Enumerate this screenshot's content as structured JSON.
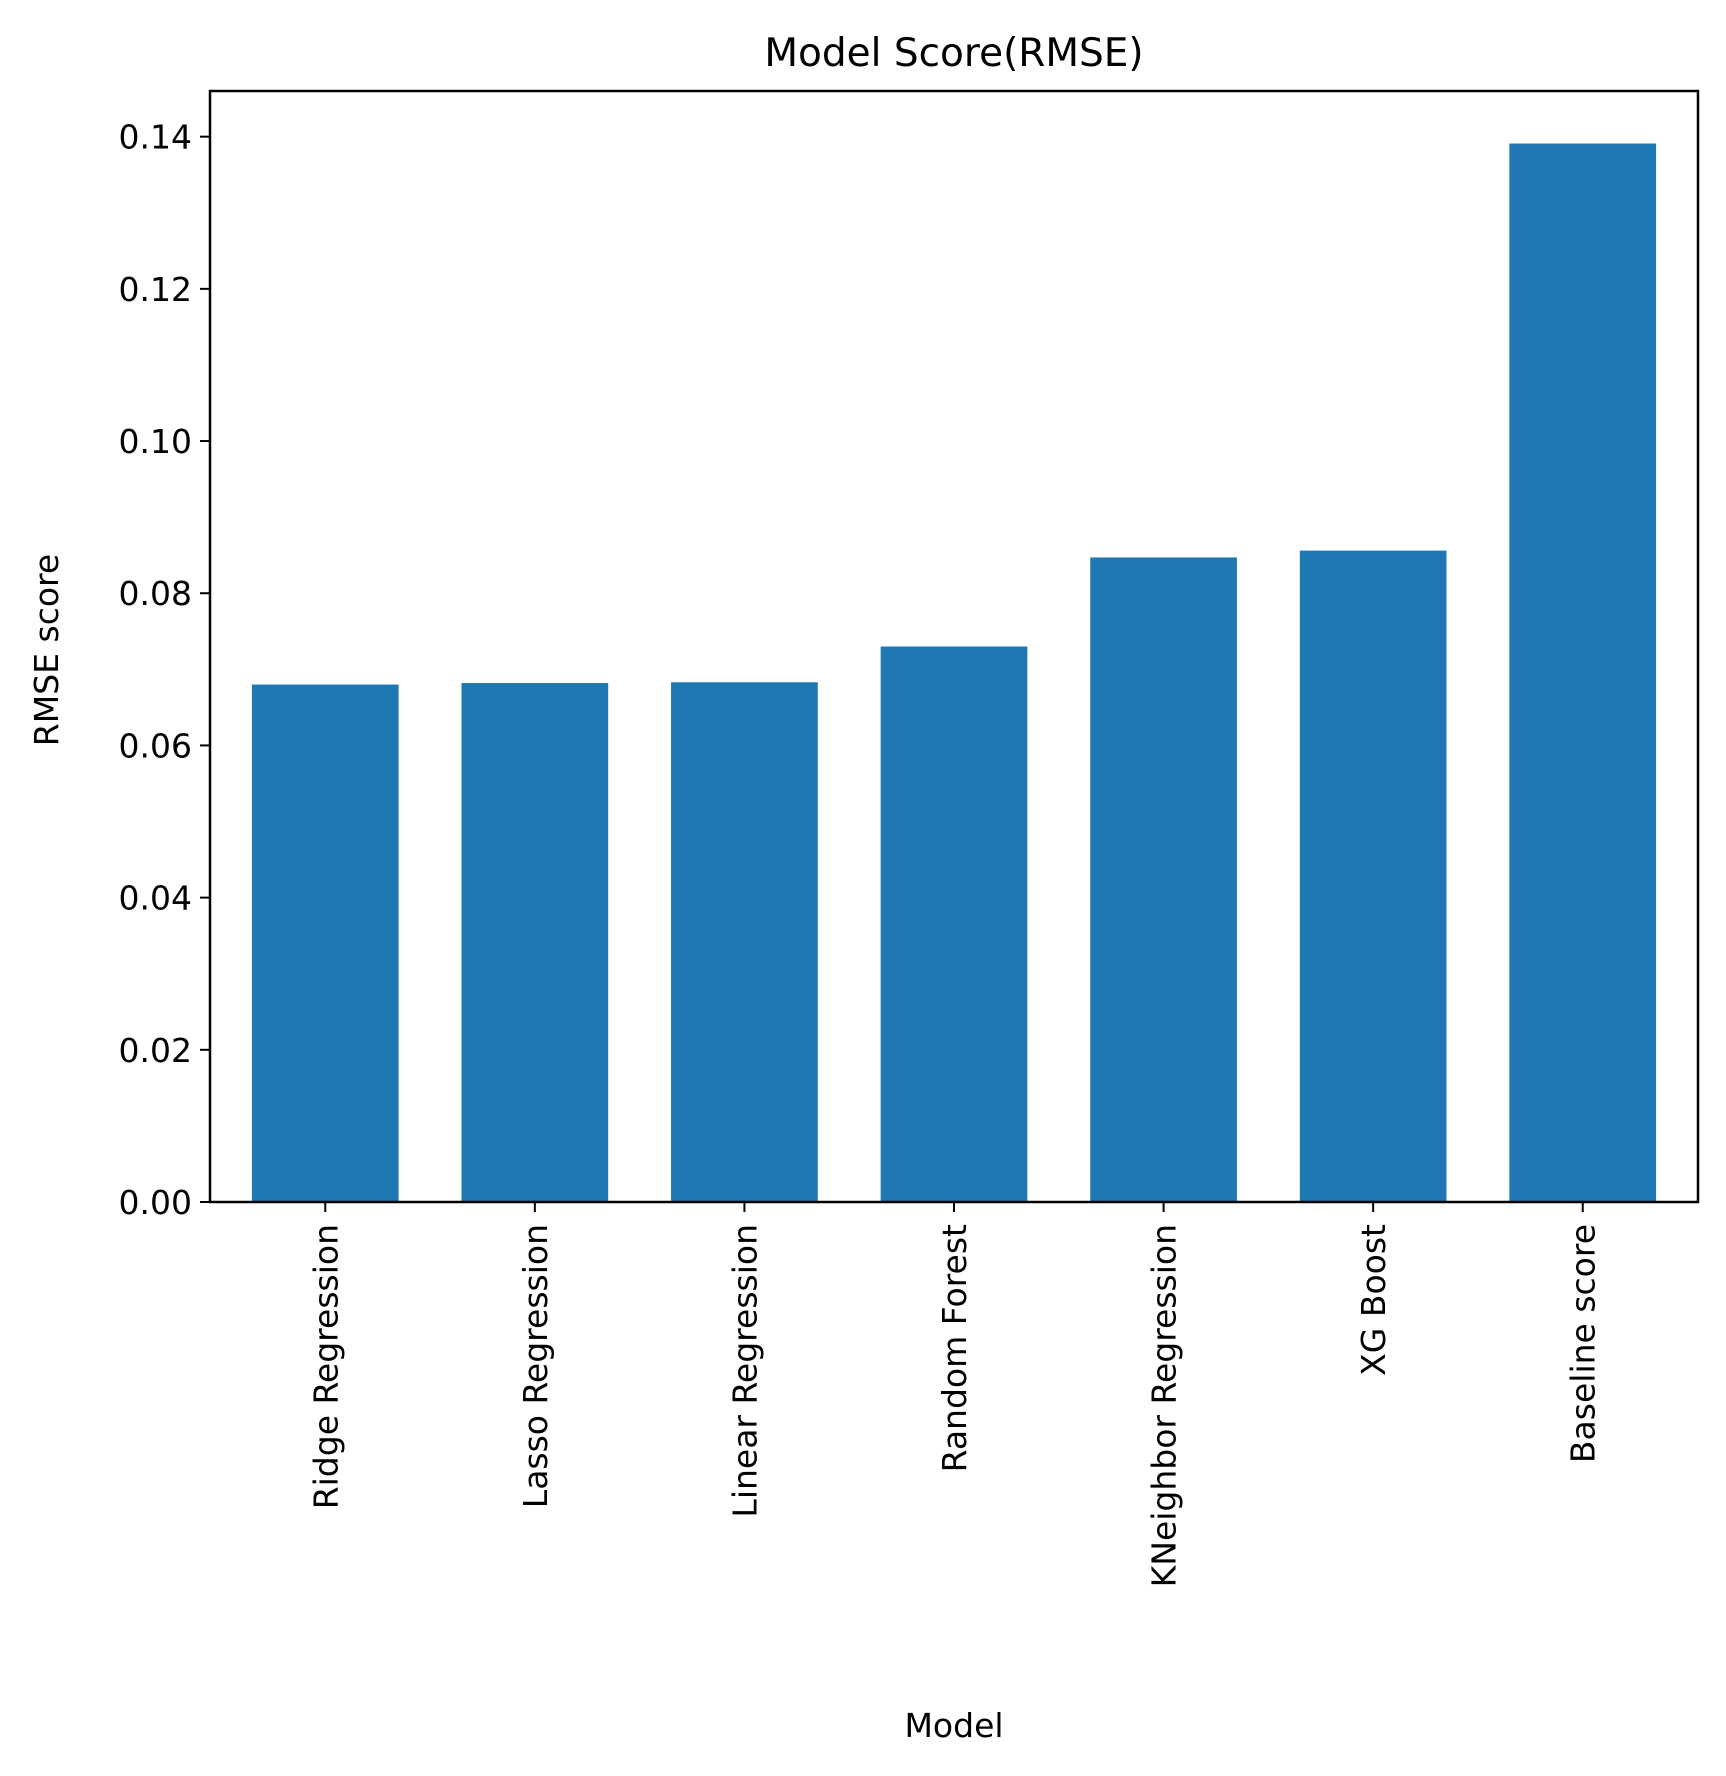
{
  "chart_data": {
    "type": "bar",
    "title": "Model Score(RMSE)",
    "xlabel": "Model",
    "ylabel": "RMSE score",
    "categories": [
      "Ridge Regression",
      "Lasso Regression",
      "Linear Regression",
      "Random Forest",
      "KNeighbor Regression",
      "XG Boost",
      "Baseline score"
    ],
    "values": [
      0.068,
      0.0682,
      0.0683,
      0.073,
      0.0847,
      0.0856,
      0.1391
    ],
    "ylim": [
      0,
      0.146
    ],
    "yticks": [
      0.0,
      0.02,
      0.04,
      0.06,
      0.08,
      0.1,
      0.12,
      0.14
    ],
    "ytick_labels": [
      "0.00",
      "0.02",
      "0.04",
      "0.06",
      "0.08",
      "0.10",
      "0.12",
      "0.14"
    ],
    "bar_color": "#1f77b4",
    "grid": false,
    "legend": false,
    "xtick_rotation": "vertical"
  }
}
